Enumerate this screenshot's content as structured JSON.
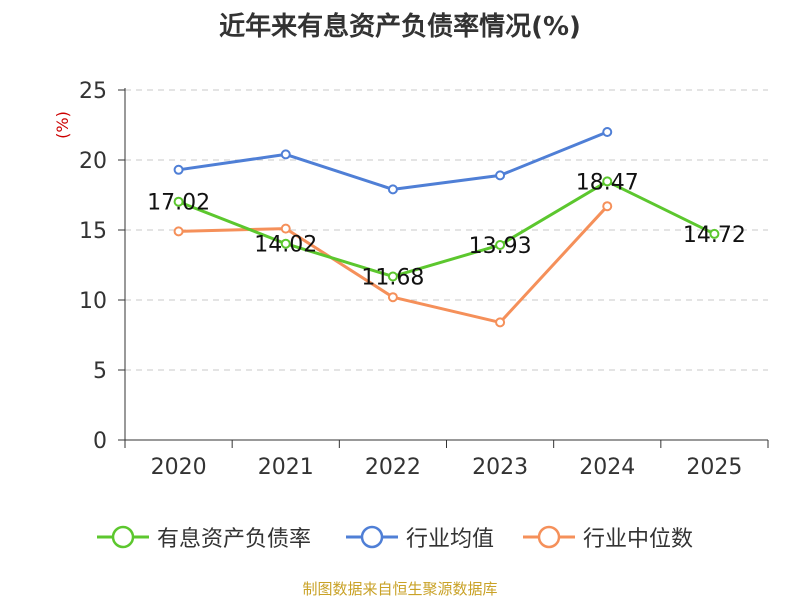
{
  "chart_data": {
    "type": "line",
    "title": "近年来有息资产负债率情况(%)",
    "ylabel": "(%)",
    "ylim": [
      0,
      25
    ],
    "yticks": [
      0,
      5,
      10,
      15,
      20,
      25
    ],
    "grid": true,
    "legend_position": "bottom",
    "categories": [
      "2020",
      "2021",
      "2022",
      "2023",
      "2024",
      "2025"
    ],
    "series": [
      {
        "name": "有息资产负债率",
        "color": "#5cc72e",
        "show_labels": true,
        "values": [
          17.02,
          14.02,
          11.68,
          13.93,
          18.47,
          14.72
        ]
      },
      {
        "name": "行业均值",
        "color": "#4f7fd6",
        "show_labels": false,
        "values": [
          19.3,
          20.4,
          17.9,
          18.9,
          22.0,
          null
        ]
      },
      {
        "name": "行业中位数",
        "color": "#f5905a",
        "show_labels": false,
        "values": [
          14.9,
          15.1,
          10.2,
          8.4,
          16.7,
          null
        ]
      }
    ]
  },
  "source": "制图数据来自恒生聚源数据库"
}
